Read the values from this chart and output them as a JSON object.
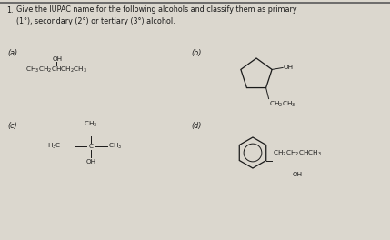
{
  "bg_color": "#dbd7ce",
  "text_color": "#1a1a1a",
  "fs_title": 5.8,
  "fs_label": 5.8,
  "fs_chem": 5.2,
  "title_num": "1.",
  "title_body": "Give the IUPAC name for the following alcohols and classify them as primary\n(1°), secondary (2°) or tertiary (3°) alcohol.",
  "label_a": "(a)",
  "label_b": "(b)",
  "label_c": "(c)",
  "label_d": "(d)",
  "line_color": "#1a1a1a",
  "top_line_color": "#5a5a5a"
}
